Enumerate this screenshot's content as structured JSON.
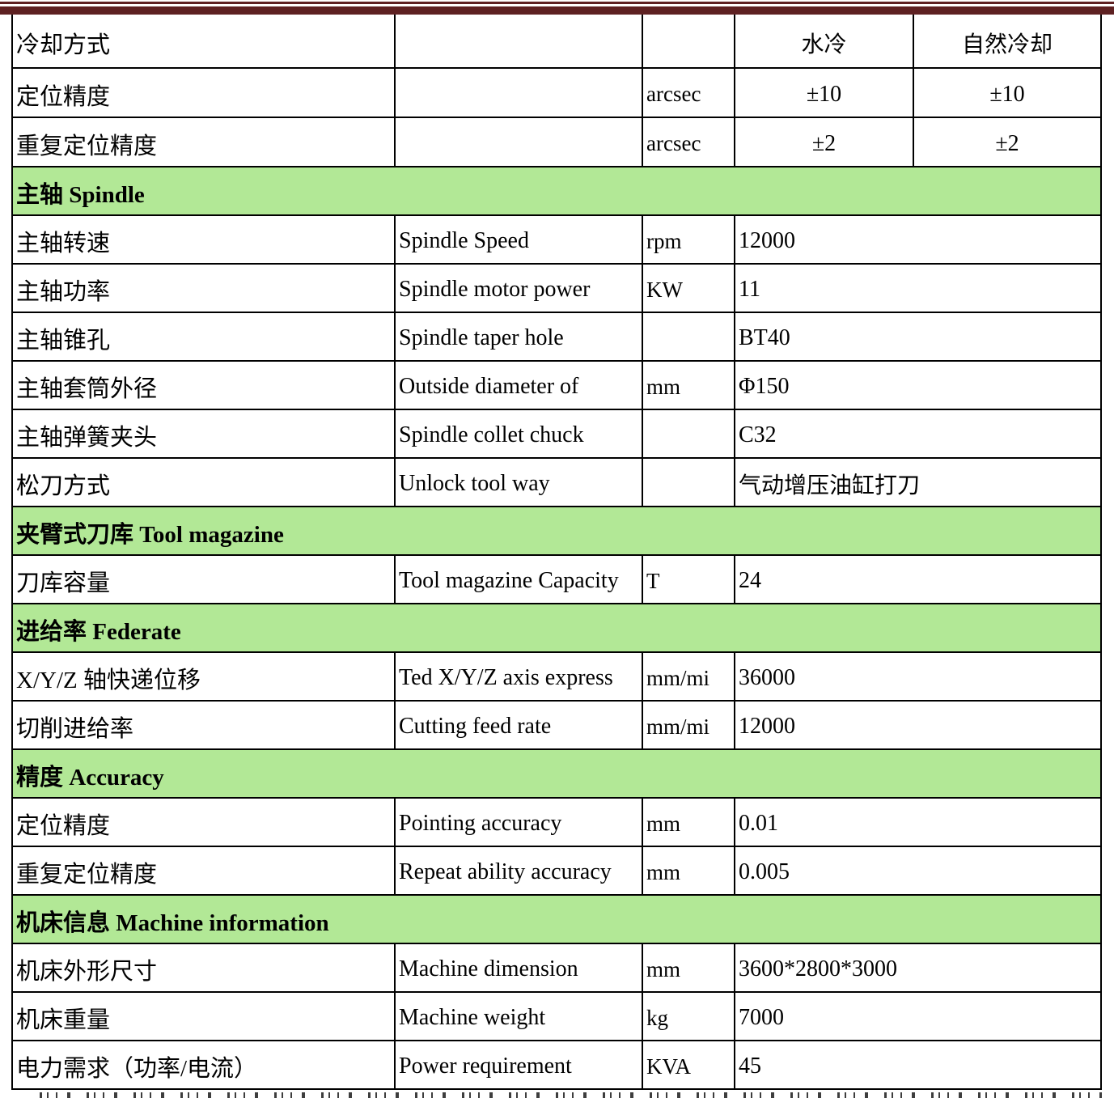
{
  "theme": {
    "top_rule_color": "#5e2122",
    "section_row_color": "#b2e896",
    "grid_line_color": "#000000",
    "text_color": "#000000"
  },
  "table": {
    "rows": [
      {
        "type": "row5",
        "cn": "冷却方式",
        "en": "",
        "unit": "",
        "v1": "水冷",
        "v2": "自然冷却"
      },
      {
        "type": "row5",
        "cn": "定位精度",
        "en": "",
        "unit": "arcsec",
        "v1": "±10",
        "v2": "±10"
      },
      {
        "type": "row5",
        "cn": "重复定位精度",
        "en": "",
        "unit": "arcsec",
        "v1": "±2",
        "v2": "±2"
      },
      {
        "type": "section",
        "label": "主轴 Spindle"
      },
      {
        "type": "row",
        "cn": "主轴转速",
        "en": "Spindle Speed",
        "unit": "rpm",
        "value": "12000"
      },
      {
        "type": "row",
        "cn": "主轴功率",
        "en": "Spindle motor power",
        "unit": "KW",
        "value": "11"
      },
      {
        "type": "row",
        "cn": "主轴锥孔",
        "en": "Spindle taper hole",
        "unit": "",
        "value": "BT40"
      },
      {
        "type": "row",
        "cn": "主轴套筒外径",
        "en": "Outside diameter of",
        "unit": "mm",
        "value": "Φ150"
      },
      {
        "type": "row",
        "cn": "主轴弹簧夹头",
        "en": "Spindle collet chuck",
        "unit": "",
        "value": "C32"
      },
      {
        "type": "row",
        "cn": "松刀方式",
        "en": "Unlock tool way",
        "unit": "",
        "value": "气动增压油缸打刀"
      },
      {
        "type": "section",
        "label": "夹臂式刀库 Tool magazine"
      },
      {
        "type": "row",
        "cn": "刀库容量",
        "en": "Tool magazine Capacity",
        "unit": "T",
        "value": "24"
      },
      {
        "type": "section",
        "label": "进给率 Federate"
      },
      {
        "type": "row",
        "cn": "X/Y/Z 轴快递位移",
        "en": "Ted X/Y/Z axis express",
        "unit": "mm/mi",
        "value": "36000"
      },
      {
        "type": "row",
        "cn": "切削进给率",
        "en": "Cutting feed rate",
        "unit": "mm/mi",
        "value": "12000"
      },
      {
        "type": "section",
        "label": "精度 Accuracy"
      },
      {
        "type": "row",
        "cn": "定位精度",
        "en": "Pointing accuracy",
        "unit": "mm",
        "value": "0.01"
      },
      {
        "type": "row",
        "cn": "重复定位精度",
        "en": "Repeat ability accuracy",
        "unit": "mm",
        "value": "0.005"
      },
      {
        "type": "section",
        "label": "机床信息 Machine information"
      },
      {
        "type": "row",
        "cn": "机床外形尺寸",
        "en": "Machine dimension",
        "unit": "mm",
        "value": "3600*2800*3000"
      },
      {
        "type": "row",
        "cn": "机床重量",
        "en": "Machine weight",
        "unit": "kg",
        "value": "7000"
      },
      {
        "type": "row",
        "cn": "电力需求（功率/电流）",
        "en": "Power requirement",
        "unit": "KVA",
        "value": "45"
      }
    ]
  }
}
